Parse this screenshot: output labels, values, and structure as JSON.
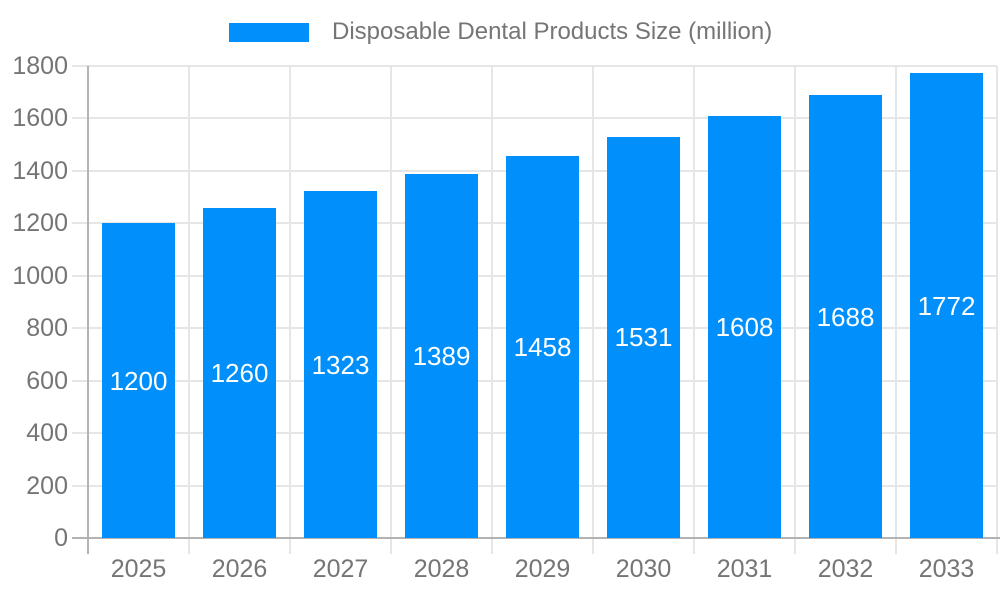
{
  "legend": {
    "label": "Disposable Dental Products Size (million)"
  },
  "chart_data": {
    "type": "bar",
    "title": "Disposable Dental Products Size (million)",
    "categories": [
      "2025",
      "2026",
      "2027",
      "2028",
      "2029",
      "2030",
      "2031",
      "2032",
      "2033"
    ],
    "series": [
      {
        "name": "Disposable Dental Products Size (million)",
        "values": [
          1200,
          1260,
          1323,
          1389,
          1458,
          1531,
          1608,
          1688,
          1772
        ]
      }
    ],
    "bar_value_labels": [
      1200,
      1260,
      1323,
      1389,
      1458,
      1531,
      1608,
      1688,
      1772
    ],
    "xlabel": "",
    "ylabel": "",
    "ylim": [
      0,
      1800
    ],
    "yticks": [
      0,
      200,
      400,
      600,
      800,
      1000,
      1200,
      1400,
      1600,
      1800
    ],
    "grid": true,
    "legend_position": "top",
    "colors": {
      "bar": "#008ffb",
      "bar_label_text": "#ffffff",
      "axis_label_text": "#757575",
      "legend_text": "#757575",
      "gridline": "#e6e6e6",
      "axis_line": "#b3b3b3",
      "background": "#ffffff"
    }
  }
}
